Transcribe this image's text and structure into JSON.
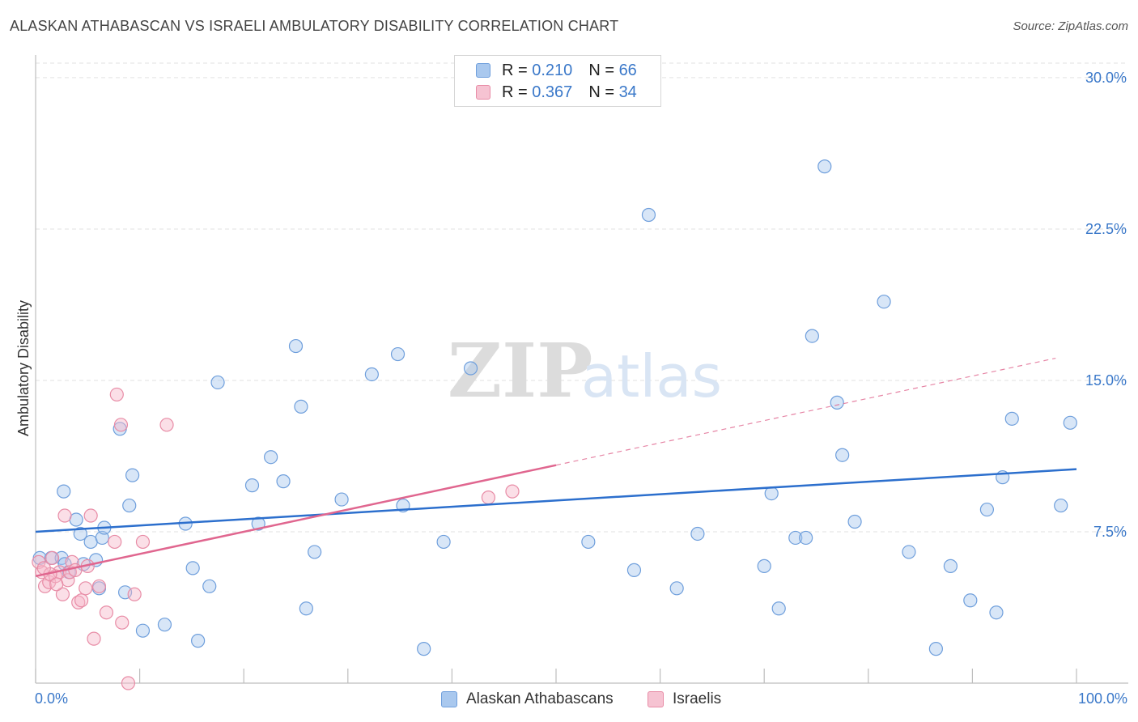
{
  "header": {
    "title": "ALASKAN ATHABASCAN VS ISRAELI AMBULATORY DISABILITY CORRELATION CHART",
    "source": "Source: ZipAtlas.com"
  },
  "watermark": {
    "part1": "ZIP",
    "part2": "atlas"
  },
  "legend": {
    "rows": [
      {
        "r_label": "R =",
        "r_value": "0.210",
        "n_label": "N =",
        "n_value": "66"
      },
      {
        "r_label": "R =",
        "r_value": "0.367",
        "n_label": "N =",
        "n_value": "34"
      }
    ]
  },
  "bottom_legend": [
    {
      "label": "Alaskan Athabascans"
    },
    {
      "label": "Israelis"
    }
  ],
  "colors": {
    "blue_fill": "#a9c8ee",
    "blue_stroke": "#6f9fdc",
    "blue_line": "#2c6fcd",
    "pink_fill": "#f6b8c9",
    "pink_stroke": "#e88ca6",
    "pink_line": "#e0668f",
    "tick_label": "#3a78c9",
    "grid": "#e2e2e2"
  },
  "chart_data": {
    "type": "scatter",
    "title": "ALASKAN ATHABASCAN VS ISRAELI AMBULATORY DISABILITY CORRELATION CHART",
    "xlabel": "",
    "ylabel": "Ambulatory Disability",
    "xlim": [
      0,
      100
    ],
    "ylim": [
      0,
      31.2
    ],
    "x_tick_labels": [
      "0.0%",
      "100.0%"
    ],
    "y_ticks": [
      7.5,
      15.0,
      22.5,
      30.0
    ],
    "y_tick_labels": [
      "7.5%",
      "15.0%",
      "22.5%",
      "30.0%"
    ],
    "series": [
      {
        "name": "Alaskan Athabascans",
        "color": "#6f9fdc",
        "points": [
          [
            0.4,
            6.2
          ],
          [
            1.5,
            6.2
          ],
          [
            2.5,
            6.2
          ],
          [
            2.8,
            5.9
          ],
          [
            3.2,
            5.5
          ],
          [
            2.7,
            9.5
          ],
          [
            3.9,
            8.1
          ],
          [
            4.3,
            7.4
          ],
          [
            4.6,
            5.9
          ],
          [
            5.3,
            7.0
          ],
          [
            5.8,
            6.1
          ],
          [
            6.1,
            4.7
          ],
          [
            6.4,
            7.2
          ],
          [
            6.6,
            7.7
          ],
          [
            8.1,
            12.6
          ],
          [
            8.6,
            4.5
          ],
          [
            9.0,
            8.8
          ],
          [
            9.3,
            10.3
          ],
          [
            10.3,
            2.6
          ],
          [
            12.4,
            2.9
          ],
          [
            14.4,
            7.9
          ],
          [
            15.1,
            5.7
          ],
          [
            15.6,
            2.1
          ],
          [
            16.7,
            4.8
          ],
          [
            17.5,
            14.9
          ],
          [
            20.8,
            9.8
          ],
          [
            21.4,
            7.9
          ],
          [
            22.6,
            11.2
          ],
          [
            23.8,
            10.0
          ],
          [
            25.0,
            16.7
          ],
          [
            25.5,
            13.7
          ],
          [
            26.0,
            3.7
          ],
          [
            26.8,
            6.5
          ],
          [
            29.4,
            9.1
          ],
          [
            32.3,
            15.3
          ],
          [
            34.8,
            16.3
          ],
          [
            35.3,
            8.8
          ],
          [
            37.3,
            1.7
          ],
          [
            39.2,
            7.0
          ],
          [
            41.8,
            15.6
          ],
          [
            53.1,
            7.0
          ],
          [
            57.5,
            5.6
          ],
          [
            58.9,
            23.2
          ],
          [
            61.6,
            4.7
          ],
          [
            63.6,
            7.4
          ],
          [
            70.0,
            5.8
          ],
          [
            70.7,
            9.4
          ],
          [
            71.4,
            3.7
          ],
          [
            73.0,
            7.2
          ],
          [
            74.0,
            7.2
          ],
          [
            74.6,
            17.2
          ],
          [
            75.8,
            25.6
          ],
          [
            77.0,
            13.9
          ],
          [
            77.5,
            11.3
          ],
          [
            78.7,
            8.0
          ],
          [
            81.5,
            18.9
          ],
          [
            83.9,
            6.5
          ],
          [
            86.5,
            1.7
          ],
          [
            87.9,
            5.8
          ],
          [
            89.8,
            4.1
          ],
          [
            91.4,
            8.6
          ],
          [
            92.3,
            3.5
          ],
          [
            92.9,
            10.2
          ],
          [
            93.8,
            13.1
          ],
          [
            98.5,
            8.8
          ],
          [
            99.4,
            12.9
          ]
        ],
        "trend": {
          "x": [
            0,
            100
          ],
          "y": [
            7.5,
            10.6
          ]
        }
      },
      {
        "name": "Israelis",
        "color": "#e88ca6",
        "points": [
          [
            0.3,
            6.0
          ],
          [
            0.6,
            5.5
          ],
          [
            0.9,
            4.8
          ],
          [
            1.3,
            5.0
          ],
          [
            1.6,
            6.2
          ],
          [
            1.9,
            5.3
          ],
          [
            2.3,
            5.5
          ],
          [
            2.6,
            4.4
          ],
          [
            2.8,
            8.3
          ],
          [
            3.1,
            5.1
          ],
          [
            3.3,
            5.5
          ],
          [
            3.5,
            6.0
          ],
          [
            3.8,
            5.6
          ],
          [
            4.1,
            4.0
          ],
          [
            4.4,
            4.1
          ],
          [
            4.8,
            4.7
          ],
          [
            5.0,
            5.8
          ],
          [
            5.3,
            8.3
          ],
          [
            5.6,
            2.2
          ],
          [
            6.1,
            4.8
          ],
          [
            6.8,
            3.5
          ],
          [
            7.6,
            7.0
          ],
          [
            7.8,
            14.3
          ],
          [
            8.2,
            12.8
          ],
          [
            8.3,
            3.0
          ],
          [
            8.9,
            0.0
          ],
          [
            9.5,
            4.4
          ],
          [
            10.3,
            7.0
          ],
          [
            12.6,
            12.8
          ],
          [
            1.4,
            5.4
          ],
          [
            0.8,
            5.7
          ],
          [
            2.0,
            4.9
          ],
          [
            43.5,
            9.2
          ],
          [
            45.8,
            9.5
          ]
        ],
        "trend": {
          "x": [
            0,
            50
          ],
          "y": [
            5.3,
            10.8
          ],
          "dashed_extension": {
            "x": [
              50,
              98
            ],
            "y": [
              10.8,
              16.1
            ]
          }
        }
      }
    ]
  }
}
